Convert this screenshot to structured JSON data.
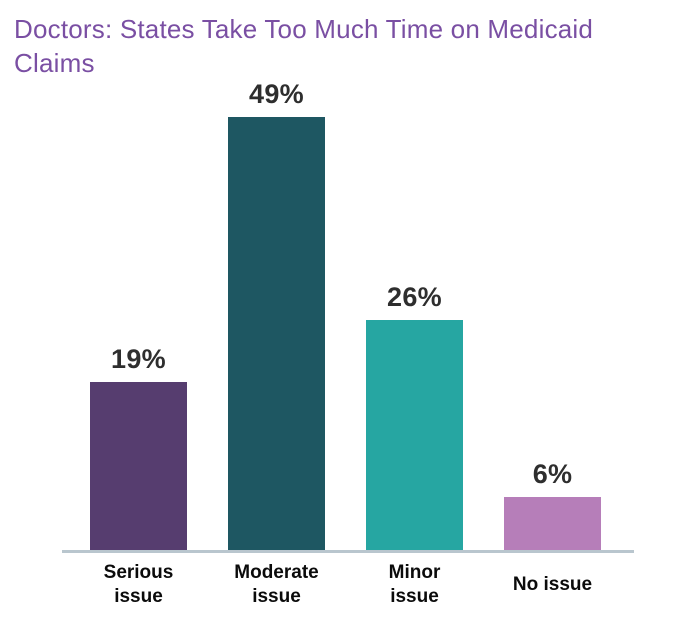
{
  "title": {
    "text": "Doctors: States Take Too Much Time on Medicaid Claims",
    "color": "#7a4fa3"
  },
  "chart_data": {
    "type": "bar",
    "title": "Doctors: States Take Too Much Time on Medicaid Claims",
    "categories": [
      "Serious issue",
      "Moderate issue",
      "Minor issue",
      "No issue"
    ],
    "values": [
      19,
      49,
      26,
      6
    ],
    "value_labels": [
      "19%",
      "49%",
      "26%",
      "6%"
    ],
    "bar_colors": [
      "#563d6f",
      "#1e5762",
      "#26a6a2",
      "#b67eb9"
    ],
    "xlabel": "",
    "ylabel": "",
    "ylim": [
      0,
      49
    ],
    "grid": false,
    "legend": false,
    "value_label_color": "#2e2e2e",
    "category_label_color": "#0b0b0b",
    "axis_line_color": "#b9c6ce"
  }
}
